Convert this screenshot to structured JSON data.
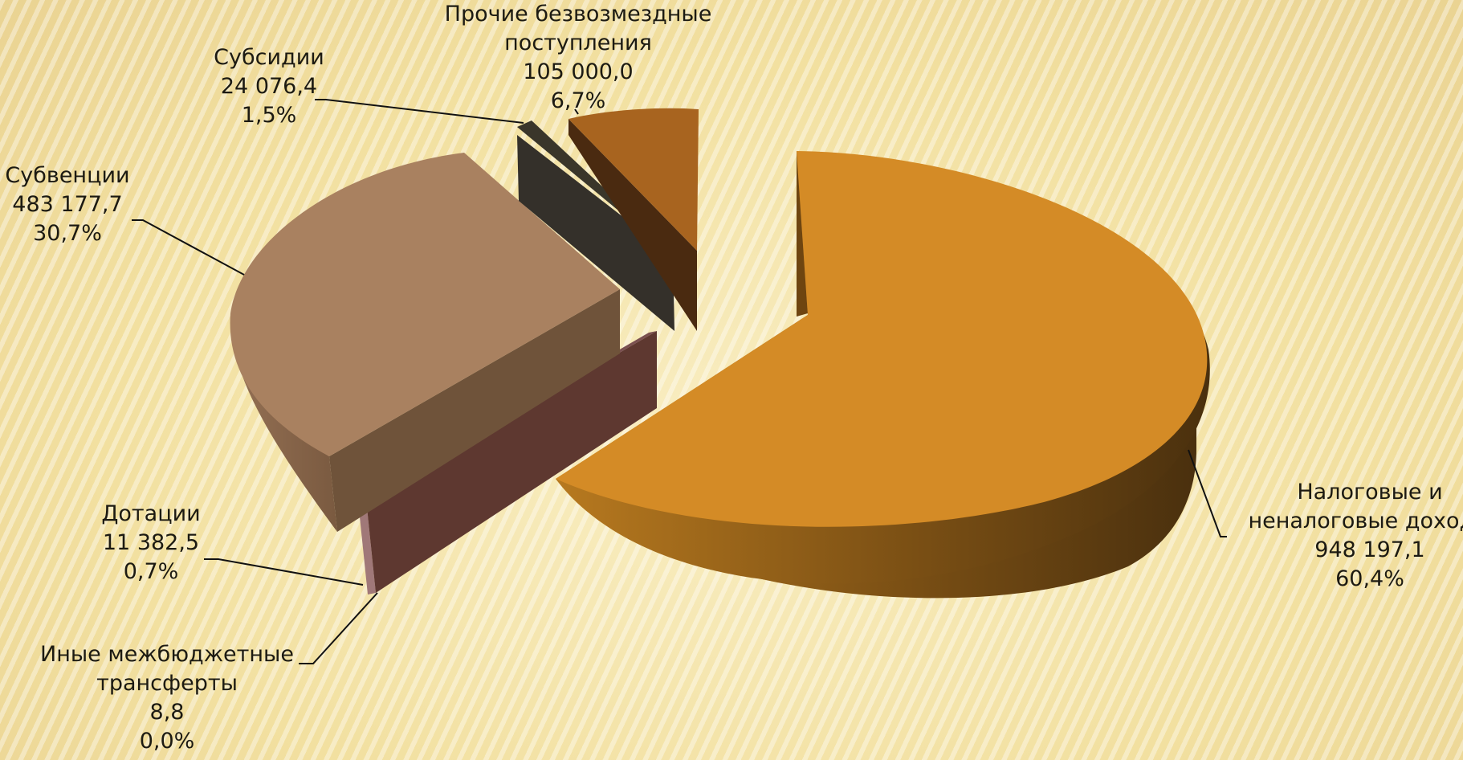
{
  "chart_data": {
    "type": "pie",
    "title": "",
    "slices": [
      {
        "name": "Налоговые и неналоговые доходы",
        "label_lines": [
          "Налоговые и",
          "неналоговые доходы"
        ],
        "value_text": "948 197,1",
        "pct_text": "60,4%",
        "value": 948197.1,
        "percent": 60.4,
        "color": "#d48b26"
      },
      {
        "name": "Иные межбюджетные трансферты",
        "label_lines": [
          "Иные межбюджетные",
          "трансферты"
        ],
        "value_text": "8,8",
        "pct_text": "0,0%",
        "value": 8.8,
        "percent": 0.0,
        "color": "#a07878"
      },
      {
        "name": "Дотации",
        "label_lines": [
          "Дотации"
        ],
        "value_text": "11 382,5",
        "pct_text": "0,7%",
        "value": 11382.5,
        "percent": 0.7,
        "color": "#5e3830"
      },
      {
        "name": "Субвенции",
        "label_lines": [
          "Субвенции"
        ],
        "value_text": "483 177,7",
        "pct_text": "30,7%",
        "value": 483177.7,
        "percent": 30.7,
        "color": "#a98160"
      },
      {
        "name": "Субсидии",
        "label_lines": [
          "Субсидии"
        ],
        "value_text": "24 076,4",
        "pct_text": "1,5%",
        "value": 24076.4,
        "percent": 1.5,
        "color": "#3a362a"
      },
      {
        "name": "Прочие безвозмездные поступления",
        "label_lines": [
          "Прочие безвозмездные",
          "поступления"
        ],
        "value_text": "105 000,0",
        "pct_text": "6,7%",
        "value": 105000.0,
        "percent": 6.7,
        "color": "#a8641f"
      }
    ]
  }
}
